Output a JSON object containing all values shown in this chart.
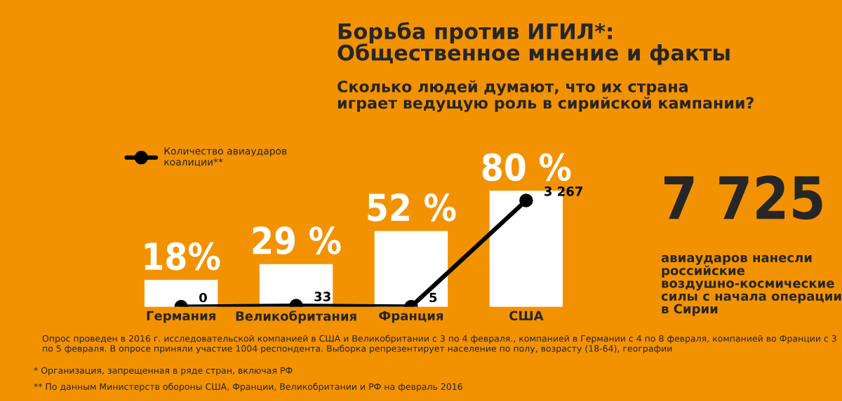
{
  "chart_data": {
    "type": "bar",
    "title": "Борьба против ИГИЛ*:\nОбщественное мнение и факты",
    "subtitle": "Сколько людей думают, что их страна\nиграет ведущую роль в сирийской кампании?",
    "categories": [
      "Германия",
      "Великобритания",
      "Франция",
      "США"
    ],
    "series": [
      {
        "color": "#ffffff",
        "values": [
          18,
          29,
          52,
          80
        ],
        "value_labels": [
          "18%",
          "29 %",
          "52 %",
          "80 %"
        ]
      },
      {
        "type": "line",
        "axis": "y2",
        "name": "Количество авиаударов\nкоалиции**",
        "color": "#000000",
        "values": [
          0,
          33,
          5,
          3267
        ],
        "value_labels": [
          "0",
          "33",
          "5",
          "3 267"
        ]
      }
    ],
    "marker": "circle",
    "legend": "top left",
    "tick_labels": "x",
    "grid": false,
    "annotations": [
      "7 725",
      "авиаударов нанесли\nроссийские\nвоздушно-космические\nсилы с начала операции\nв Сирии",
      "Опрос проведен в 2016 г. исследовательской компанией в США и Великобритании с 3 по 4 февраля., компанией в Германии с 4 по 8 февраля, компанией во Франции с 3 по 5 февраля. В опросе приняли участие 1004 респондента. Выборка репрезентирует население по полу, возрасту (18-64), географии",
      "* Организация, запрещенная в ряде стран, включая РФ",
      "** По данным Министерств обороны США, Франции, Великобритании и РФ на февраль 2016"
    ]
  }
}
